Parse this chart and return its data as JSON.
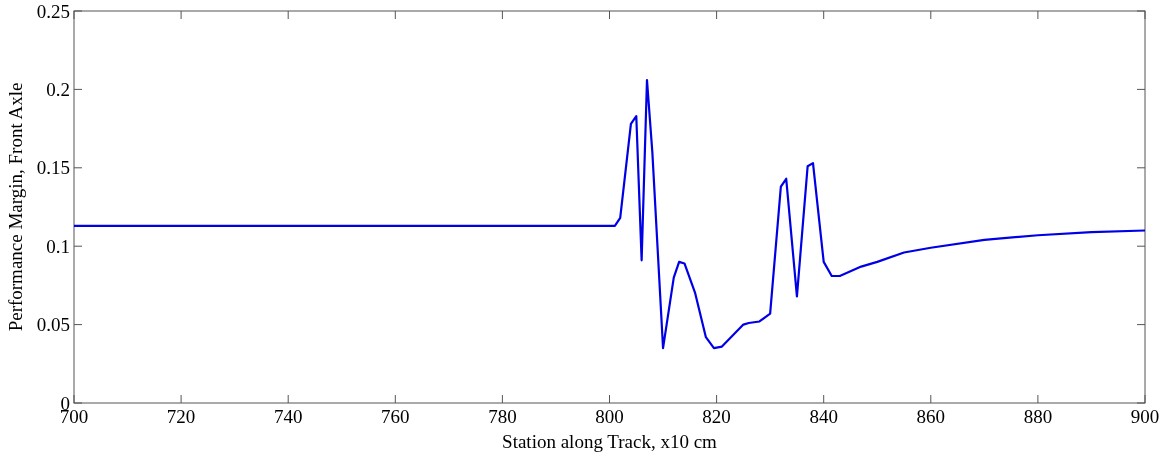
{
  "chart_data": {
    "type": "line",
    "xlabel": "Station along Track, x10 cm",
    "ylabel": "Performance Margin, Front Axle",
    "x": [
      700,
      801,
      802,
      804,
      805,
      806,
      807,
      808,
      810,
      812,
      813,
      814,
      816,
      818,
      819.5,
      821,
      823,
      825,
      826,
      828,
      830,
      832,
      833,
      835,
      837,
      838,
      840,
      841.5,
      843,
      847,
      850,
      855,
      860,
      870,
      880,
      890,
      900
    ],
    "series": [
      {
        "color": "#0000e6",
        "values": [
          0.113,
          0.113,
          0.118,
          0.178,
          0.183,
          0.091,
          0.206,
          0.16,
          0.035,
          0.08,
          0.09,
          0.089,
          0.07,
          0.042,
          0.035,
          0.036,
          0.043,
          0.05,
          0.051,
          0.052,
          0.057,
          0.138,
          0.143,
          0.068,
          0.151,
          0.153,
          0.09,
          0.081,
          0.081,
          0.087,
          0.09,
          0.096,
          0.099,
          0.104,
          0.107,
          0.109,
          0.11
        ]
      }
    ],
    "xlim": [
      700,
      900
    ],
    "xticks": [
      700,
      720,
      740,
      760,
      780,
      800,
      820,
      840,
      860,
      880,
      900
    ],
    "ylim": [
      0,
      0.25
    ],
    "yticks": [
      0,
      0.05,
      0.1,
      0.15,
      0.2,
      0.25
    ],
    "grid": false,
    "marker": "none",
    "line_style": "solid"
  }
}
